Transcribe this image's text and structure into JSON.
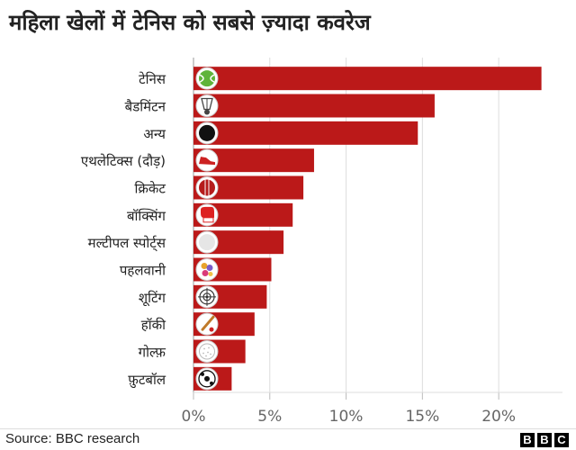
{
  "chart_data": {
    "type": "bar",
    "orientation": "horizontal",
    "title": "महिला खेलों में टेनिस को सबसे ज़्यादा कवरेज",
    "categories": [
      "टेनिस",
      "बैडमिंटन",
      "अन्य",
      "एथलेटिक्स (दौड़)",
      "क्रिकेट",
      "बॉक्सिंग",
      "मल्टीपल स्पोर्ट्स",
      "पहलवानी",
      "शूटिंग",
      "हॉकी",
      "गोल्फ़",
      "फ़ुटबॉल"
    ],
    "values": [
      22.8,
      15.8,
      14.7,
      7.9,
      7.2,
      6.5,
      5.9,
      5.1,
      4.8,
      4.0,
      3.4,
      2.5
    ],
    "icons": [
      "tennis-ball-icon",
      "shuttlecock-icon",
      "black-circle-icon",
      "running-shoe-icon",
      "cricket-ball-icon",
      "boxing-glove-icon",
      "multi-sport-icon",
      "wrestler-icon",
      "target-icon",
      "hockey-stick-icon",
      "golf-ball-icon",
      "football-icon"
    ],
    "xlim": [
      0,
      23
    ],
    "x_ticks": [
      0,
      5,
      10,
      15,
      20
    ],
    "x_tick_labels": [
      "0%",
      "5%",
      "10%",
      "15%",
      "20%"
    ],
    "xlabel": "",
    "ylabel": "",
    "grid": "vertical",
    "bar_color": "#bb1919"
  },
  "footer": {
    "source": "Source: BBC research",
    "logo_letters": [
      "B",
      "B",
      "C"
    ]
  }
}
